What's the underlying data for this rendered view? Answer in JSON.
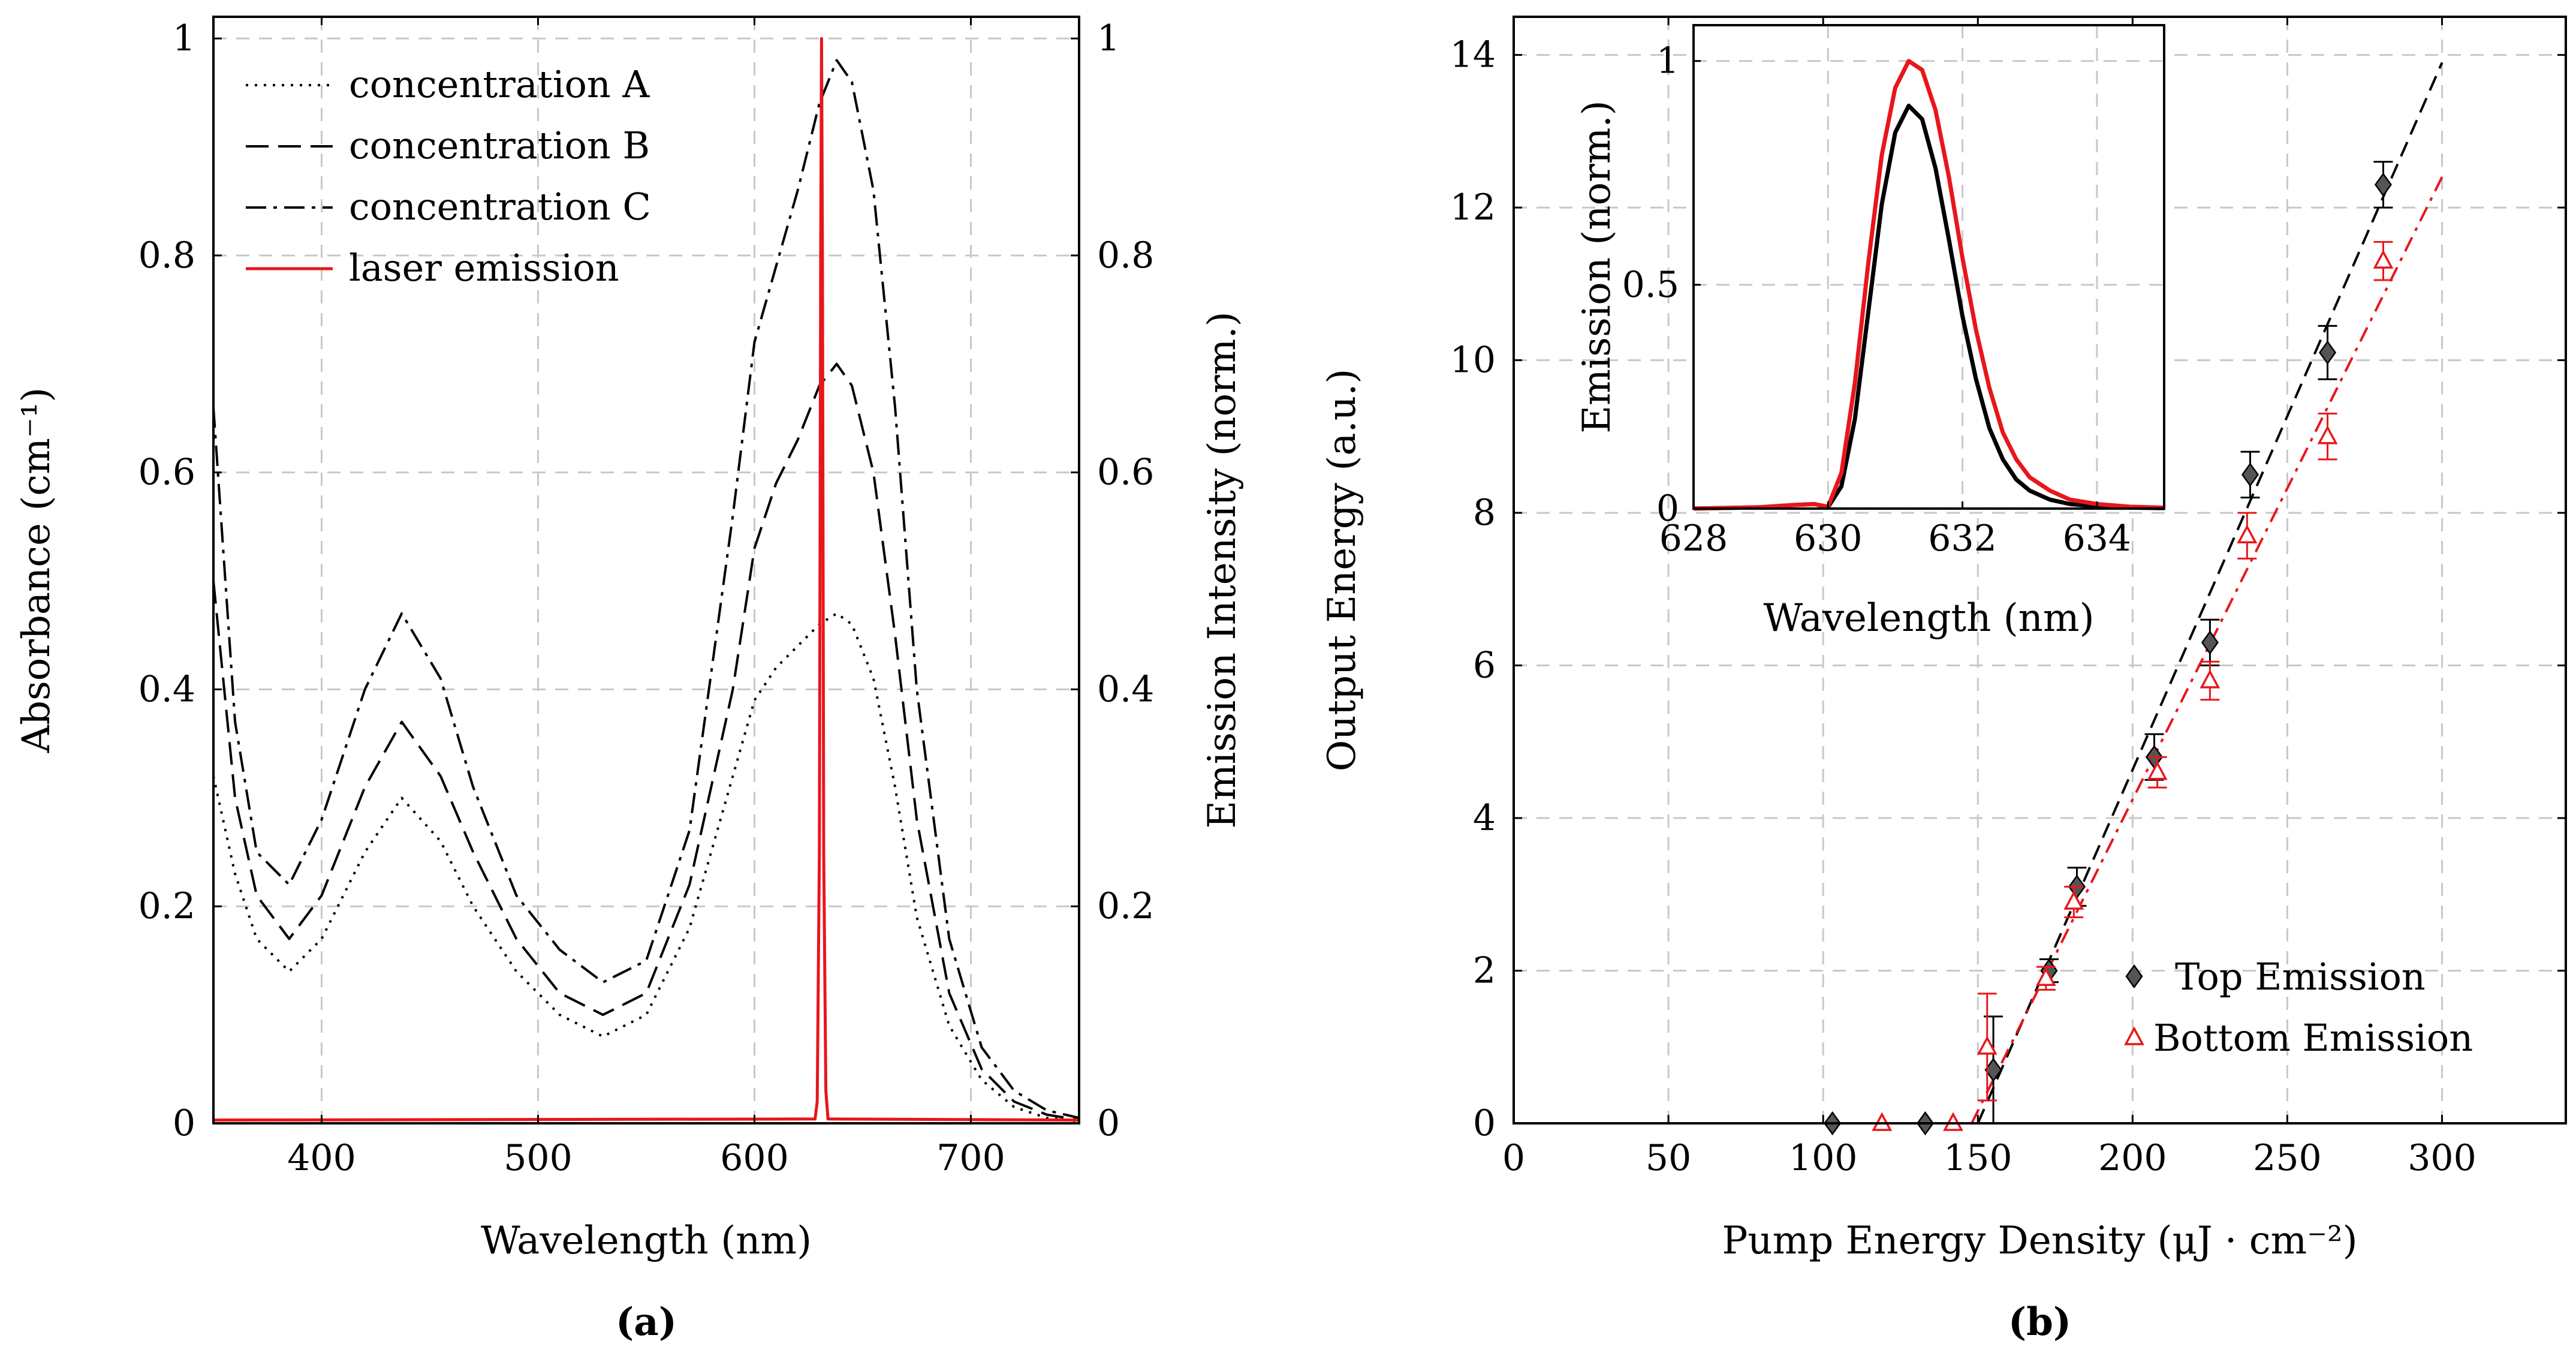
{
  "chart_data": [
    {
      "id": "a",
      "type": "line",
      "caption": "(a)",
      "xlabel": "Wavelength (nm)",
      "ylabel": "Absorbance (cm⁻¹)",
      "y2label": "Emission Intensity (norm.)",
      "xlim": [
        350,
        750
      ],
      "ylim": [
        0,
        1.02
      ],
      "y2lim": [
        0,
        1.02
      ],
      "xticks": [
        400,
        500,
        600,
        700
      ],
      "yticks": [
        0,
        0.2,
        0.4,
        0.6,
        0.8,
        1
      ],
      "y2ticks": [
        0,
        0.2,
        0.4,
        0.6,
        0.8,
        1
      ],
      "grid": true,
      "legend_position": "top-left",
      "series": [
        {
          "name": "concentration A",
          "style": "dotted",
          "color": "#000000",
          "x": [
            350,
            360,
            370,
            385,
            400,
            420,
            437,
            455,
            470,
            490,
            510,
            530,
            550,
            570,
            590,
            600,
            610,
            620,
            630,
            638,
            645,
            655,
            665,
            675,
            690,
            705,
            720,
            735,
            750
          ],
          "y": [
            0.32,
            0.23,
            0.17,
            0.14,
            0.17,
            0.25,
            0.3,
            0.26,
            0.2,
            0.14,
            0.1,
            0.08,
            0.1,
            0.18,
            0.32,
            0.39,
            0.42,
            0.44,
            0.46,
            0.47,
            0.46,
            0.41,
            0.31,
            0.19,
            0.09,
            0.04,
            0.015,
            0.005,
            0.002
          ]
        },
        {
          "name": "concentration B",
          "style": "dashed",
          "color": "#000000",
          "x": [
            350,
            360,
            370,
            385,
            400,
            420,
            437,
            455,
            470,
            490,
            510,
            530,
            550,
            570,
            590,
            600,
            610,
            620,
            630,
            638,
            645,
            655,
            665,
            675,
            690,
            705,
            720,
            735,
            750
          ],
          "y": [
            0.5,
            0.3,
            0.21,
            0.17,
            0.21,
            0.31,
            0.37,
            0.32,
            0.25,
            0.17,
            0.12,
            0.1,
            0.12,
            0.22,
            0.4,
            0.53,
            0.59,
            0.63,
            0.68,
            0.7,
            0.68,
            0.6,
            0.45,
            0.28,
            0.12,
            0.05,
            0.02,
            0.008,
            0.003
          ]
        },
        {
          "name": "concentration C",
          "style": "dashdot",
          "color": "#000000",
          "x": [
            350,
            360,
            370,
            385,
            400,
            420,
            437,
            455,
            470,
            490,
            510,
            530,
            550,
            570,
            590,
            600,
            610,
            620,
            630,
            638,
            645,
            655,
            665,
            675,
            690,
            705,
            720,
            735,
            750
          ],
          "y": [
            0.66,
            0.37,
            0.25,
            0.22,
            0.28,
            0.4,
            0.47,
            0.41,
            0.31,
            0.21,
            0.16,
            0.13,
            0.15,
            0.27,
            0.56,
            0.72,
            0.79,
            0.86,
            0.94,
            0.98,
            0.96,
            0.86,
            0.66,
            0.4,
            0.17,
            0.07,
            0.03,
            0.012,
            0.005
          ]
        },
        {
          "name": "laser emission",
          "style": "solid",
          "color": "#e8161b",
          "axis": "right",
          "x": [
            350,
            628,
            629,
            630,
            630.6,
            631,
            631.4,
            632,
            633,
            634,
            750
          ],
          "y": [
            0.003,
            0.004,
            0.02,
            0.25,
            0.8,
            1.0,
            0.8,
            0.25,
            0.03,
            0.004,
            0.003
          ]
        }
      ]
    },
    {
      "id": "b",
      "type": "scatter",
      "caption": "(b)",
      "xlabel": "Pump Energy Density (μJ · cm⁻²)",
      "ylabel": "Output Energy (a.u.)",
      "xlim": [
        0,
        340
      ],
      "ylim": [
        0,
        14.5
      ],
      "xticks": [
        0,
        50,
        100,
        150,
        200,
        250,
        300
      ],
      "yticks": [
        0,
        2,
        4,
        6,
        8,
        10,
        12,
        14
      ],
      "grid": true,
      "legend_position": "bottom-right",
      "series": [
        {
          "name": "Top Emission",
          "marker": "diamond",
          "color": "#555555",
          "x": [
            103,
            133,
            155,
            173,
            182,
            207,
            225,
            238,
            263,
            281
          ],
          "y": [
            0,
            0,
            0.7,
            2.0,
            3.1,
            4.8,
            6.3,
            8.5,
            10.1,
            12.3
          ],
          "err": [
            0,
            0,
            0.7,
            0.15,
            0.25,
            0.3,
            0.3,
            0.3,
            0.35,
            0.3
          ],
          "fit": {
            "x": [
              150,
              300
            ],
            "y": [
              0,
              13.9
            ]
          }
        },
        {
          "name": "Bottom Emission",
          "marker": "triangle",
          "color": "#e8161b",
          "x": [
            119,
            142,
            153,
            172,
            181,
            208,
            225,
            237,
            263,
            281
          ],
          "y": [
            0,
            0,
            1.0,
            1.9,
            2.9,
            4.6,
            5.8,
            7.7,
            9.0,
            11.3
          ],
          "err": [
            0,
            0,
            0.7,
            0.15,
            0.2,
            0.2,
            0.25,
            0.3,
            0.3,
            0.25
          ],
          "fit": {
            "x": [
              148,
              300
            ],
            "y": [
              0,
              12.4
            ]
          }
        }
      ],
      "inset": {
        "type": "line",
        "xlabel": "Wavelength (nm)",
        "ylabel": "Emission (norm.)",
        "xlim": [
          628,
          635
        ],
        "ylim": [
          0,
          1.08
        ],
        "xticks": [
          628,
          630,
          632,
          634
        ],
        "yticks": [
          0,
          0.5,
          1
        ],
        "grid": true,
        "series": [
          {
            "name": "top emission spectrum",
            "color": "#000000",
            "x": [
              628,
              629,
              629.5,
              629.8,
              630,
              630.2,
              630.4,
              630.6,
              630.8,
              631,
              631.2,
              631.4,
              631.6,
              631.8,
              632,
              632.2,
              632.4,
              632.6,
              632.8,
              633,
              633.3,
              633.6,
              634,
              634.5,
              635
            ],
            "y": [
              0,
              0.003,
              0.008,
              0.01,
              0.003,
              0.05,
              0.2,
              0.44,
              0.68,
              0.84,
              0.9,
              0.87,
              0.76,
              0.6,
              0.43,
              0.29,
              0.18,
              0.11,
              0.065,
              0.04,
              0.02,
              0.01,
              0.005,
              0.002,
              0.001
            ]
          },
          {
            "name": "bottom emission spectrum",
            "color": "#e8161b",
            "x": [
              628,
              629,
              629.5,
              629.8,
              630,
              630.2,
              630.4,
              630.6,
              630.8,
              631,
              631.2,
              631.4,
              631.6,
              631.8,
              632,
              632.2,
              632.4,
              632.6,
              632.8,
              633,
              633.3,
              633.6,
              634,
              634.5,
              635
            ],
            "y": [
              0,
              0.003,
              0.008,
              0.01,
              0.004,
              0.08,
              0.28,
              0.55,
              0.79,
              0.94,
              1.0,
              0.98,
              0.89,
              0.74,
              0.56,
              0.4,
              0.27,
              0.17,
              0.11,
              0.07,
              0.04,
              0.02,
              0.01,
              0.004,
              0.002
            ]
          }
        ]
      }
    }
  ]
}
